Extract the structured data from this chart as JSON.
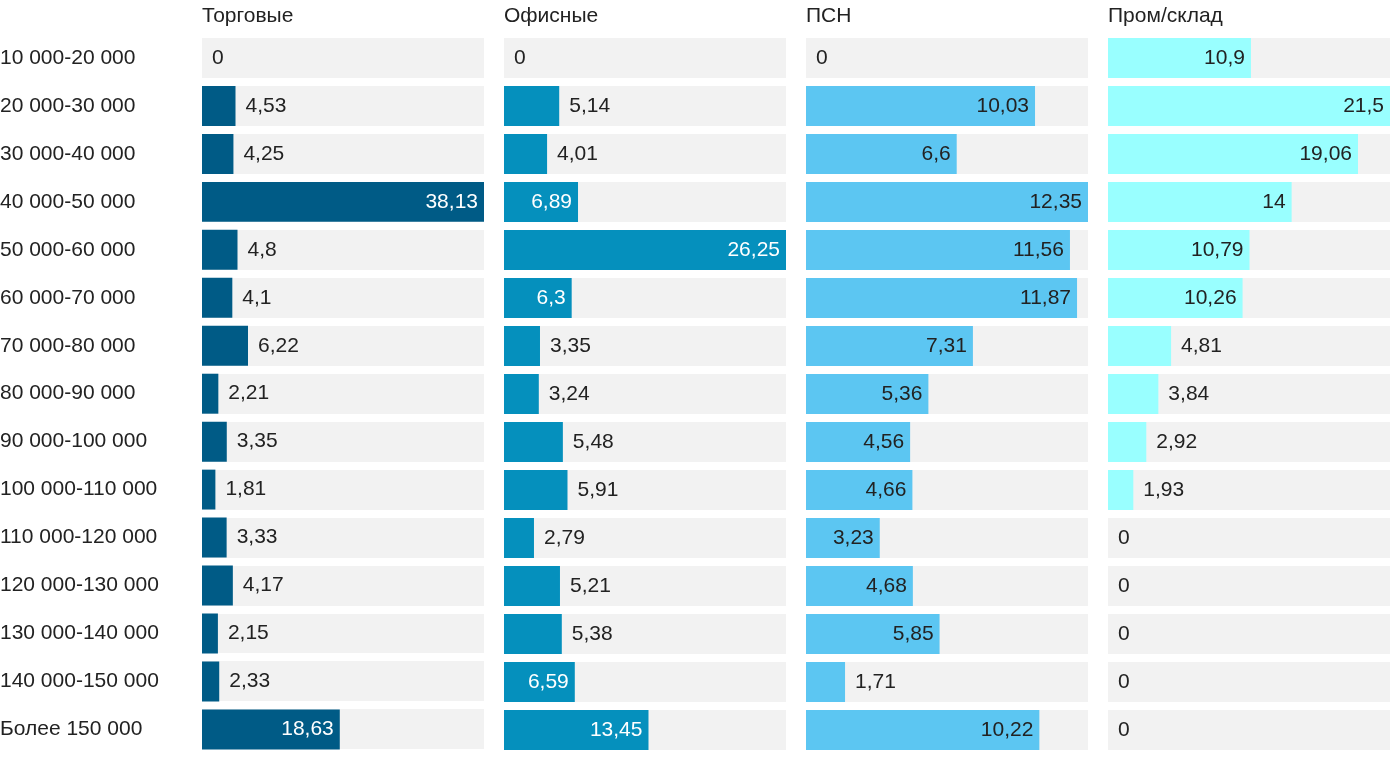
{
  "chart_data": [
    {
      "type": "bar",
      "orientation": "horizontal",
      "title": "Торговые",
      "tick_labels": "y",
      "categories": [
        "10 000-20 000",
        "20 000-30 000",
        "30 000-40 000",
        "40 000-50 000",
        "50 000-60 000",
        "60 000-70 000",
        "70 000-80 000",
        "80 000-90 000",
        "90 000-100 000",
        "100 000-110 000",
        "110 000-120 000",
        "120 000-130 000",
        "130 000-140 000",
        "140 000-150 000",
        "Более 150 000"
      ],
      "series": [
        {
          "color": "#005b86",
          "values": [
            0,
            4.53,
            4.25,
            38.13,
            4.8,
            4.1,
            6.22,
            2.21,
            3.35,
            1.81,
            3.33,
            4.17,
            2.15,
            2.33,
            18.63
          ],
          "value_labels": [
            "0",
            "4,53",
            "4,25",
            "38,13",
            "4,8",
            "4,1",
            "6,22",
            "2,21",
            "3,35",
            "1,81",
            "3,33",
            "4,17",
            "2,15",
            "2,33",
            "18,63"
          ]
        }
      ]
    },
    {
      "type": "bar",
      "orientation": "horizontal",
      "title": "Офисные",
      "tick_labels": false,
      "categories": [
        null,
        null,
        null,
        null,
        null,
        null,
        null,
        null,
        null,
        null,
        null,
        null,
        null,
        null,
        null
      ],
      "series": [
        {
          "color": "#0590bd",
          "values": [
            0,
            5.14,
            4.01,
            6.89,
            26.25,
            6.3,
            3.35,
            3.24,
            5.48,
            5.91,
            2.79,
            5.21,
            5.38,
            6.59,
            13.45
          ],
          "value_labels": [
            "0",
            "5,14",
            "4,01",
            "6,89",
            "26,25",
            "6,3",
            "3,35",
            "3,24",
            "5,48",
            "5,91",
            "2,79",
            "5,21",
            "5,38",
            "6,59",
            "13,45"
          ]
        }
      ]
    },
    {
      "type": "bar",
      "orientation": "horizontal",
      "title": "ПСН",
      "tick_labels": false,
      "categories": [
        null,
        null,
        null,
        null,
        null,
        null,
        null,
        null,
        null,
        null,
        null,
        null,
        null,
        null,
        null
      ],
      "series": [
        {
          "color": "#5cc6f2",
          "values": [
            0,
            10.03,
            6.6,
            12.35,
            11.56,
            11.87,
            7.31,
            5.36,
            4.56,
            4.66,
            3.23,
            4.68,
            5.85,
            1.71,
            10.22
          ],
          "value_labels": [
            "0",
            "10,03",
            "6,6",
            "12,35",
            "11,56",
            "11,87",
            "7,31",
            "5,36",
            "4,56",
            "4,66",
            "3,23",
            "4,68",
            "5,85",
            "1,71",
            "10,22"
          ]
        }
      ]
    },
    {
      "type": "bar",
      "orientation": "horizontal",
      "title": "Пром/склад",
      "tick_labels": false,
      "categories": [
        null,
        null,
        null,
        null,
        null,
        null,
        null,
        null,
        null,
        null,
        null,
        null,
        null,
        null,
        null
      ],
      "series": [
        {
          "color": "#99ffff",
          "values": [
            10.9,
            21.5,
            19.06,
            14,
            10.79,
            10.26,
            4.81,
            3.84,
            2.92,
            1.93,
            0,
            0,
            0,
            0,
            0
          ],
          "value_labels": [
            "10,9",
            "21,5",
            "19,06",
            "14",
            "10,79",
            "10,26",
            "4,81",
            "3,84",
            "2,92",
            "1,93",
            "0",
            "0",
            "0",
            "0",
            "0"
          ]
        }
      ]
    }
  ]
}
